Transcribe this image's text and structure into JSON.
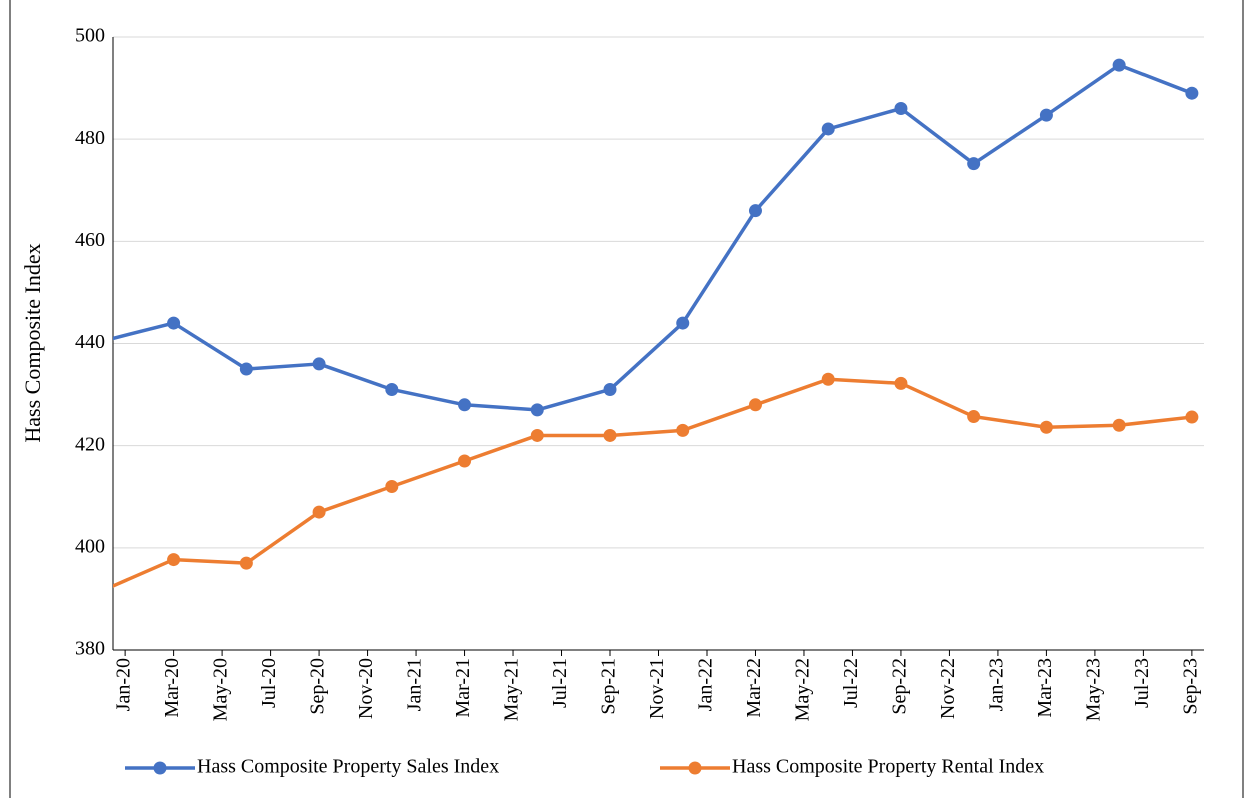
{
  "chart_data": {
    "type": "line",
    "y_label": "Hass Composite Index",
    "x": [
      -1,
      2,
      5,
      8,
      11,
      14,
      17,
      20,
      23,
      26,
      29,
      32,
      35,
      38,
      41,
      44
    ],
    "xlim": [
      -0.5,
      44.5
    ],
    "xticks": [
      {
        "value": 0,
        "label": "Jan-20"
      },
      {
        "value": 2,
        "label": "Mar-20"
      },
      {
        "value": 4,
        "label": "May-20"
      },
      {
        "value": 6,
        "label": "Jul-20"
      },
      {
        "value": 8,
        "label": "Sep-20"
      },
      {
        "value": 10,
        "label": "Nov-20"
      },
      {
        "value": 12,
        "label": "Jan-21"
      },
      {
        "value": 14,
        "label": "Mar-21"
      },
      {
        "value": 16,
        "label": "May-21"
      },
      {
        "value": 18,
        "label": "Jul-21"
      },
      {
        "value": 20,
        "label": "Sep-21"
      },
      {
        "value": 22,
        "label": "Nov-21"
      },
      {
        "value": 24,
        "label": "Jan-22"
      },
      {
        "value": 26,
        "label": "Mar-22"
      },
      {
        "value": 28,
        "label": "May-22"
      },
      {
        "value": 30,
        "label": "Jul-22"
      },
      {
        "value": 32,
        "label": "Sep-22"
      },
      {
        "value": 34,
        "label": "Nov-22"
      },
      {
        "value": 36,
        "label": "Jan-23"
      },
      {
        "value": 38,
        "label": "Mar-23"
      },
      {
        "value": 40,
        "label": "May-23"
      },
      {
        "value": 42,
        "label": "Jul-23"
      },
      {
        "value": 44,
        "label": "Sep-23"
      }
    ],
    "ylim": [
      380,
      500
    ],
    "yticks": [
      380,
      400,
      420,
      440,
      460,
      480,
      500
    ],
    "grid": true,
    "legend": "bottom",
    "series": [
      {
        "name": "Hass Composite Property Sales Index",
        "color": "#4472c4",
        "values": [
          440.4,
          444,
          435,
          436,
          431,
          428,
          427,
          431,
          444,
          466,
          482,
          486,
          475.2,
          484.7,
          494.5,
          489
        ]
      },
      {
        "name": "Hass Composite Property Rental Index",
        "color": "#ed7d31",
        "values": [
          391.5,
          397.7,
          397,
          407,
          412,
          417,
          422,
          422,
          423,
          428,
          433,
          432.2,
          425.7,
          423.6,
          424,
          425.6
        ]
      }
    ]
  }
}
